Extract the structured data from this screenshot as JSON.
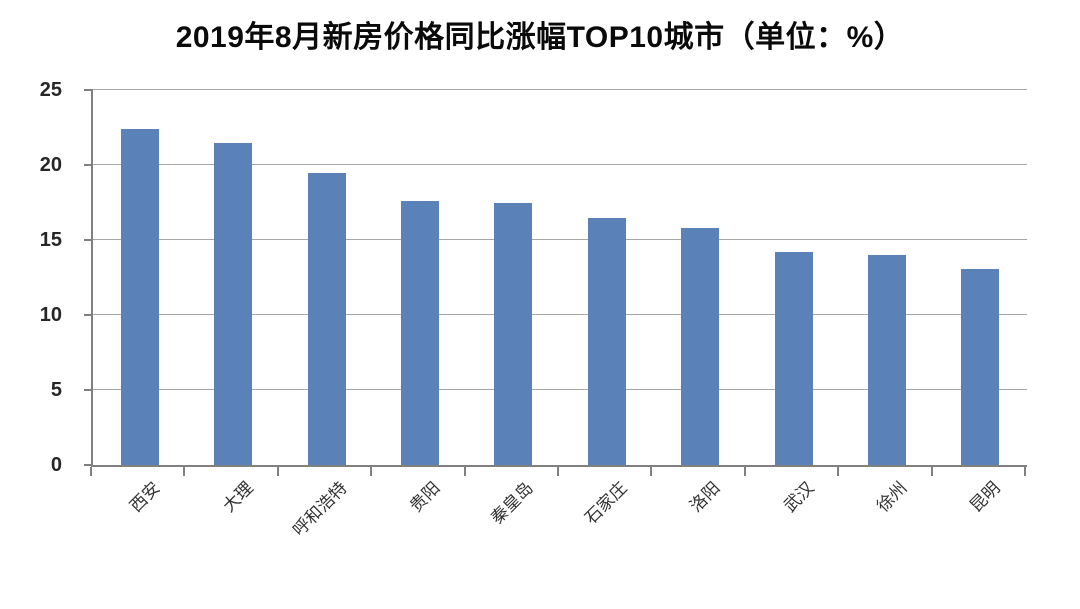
{
  "chart_data": {
    "type": "bar",
    "title": "2019年8月新房价格同比涨幅TOP10城市（单位：%）",
    "unit": "%",
    "categories": [
      "西安",
      "大理",
      "呼和浩特",
      "贵阳",
      "秦皇岛",
      "石家庄",
      "洛阳",
      "武汉",
      "徐州",
      "昆明"
    ],
    "values": [
      22.4,
      21.5,
      19.5,
      17.6,
      17.5,
      16.5,
      15.8,
      14.2,
      14.0,
      13.1
    ],
    "xlabel": "",
    "ylabel": "",
    "ylim": [
      0,
      25
    ],
    "yticks": [
      0,
      5,
      10,
      15,
      20,
      25
    ],
    "grid": true,
    "legend": false,
    "bar_color": "#5b81b9",
    "gridline_color": "#a6a6a6",
    "axis_color": "#808080",
    "title_color": "#0a0a0a",
    "tick_label_color": "#262626",
    "category_label_color": "#333333",
    "background_color": "#ffffff"
  }
}
